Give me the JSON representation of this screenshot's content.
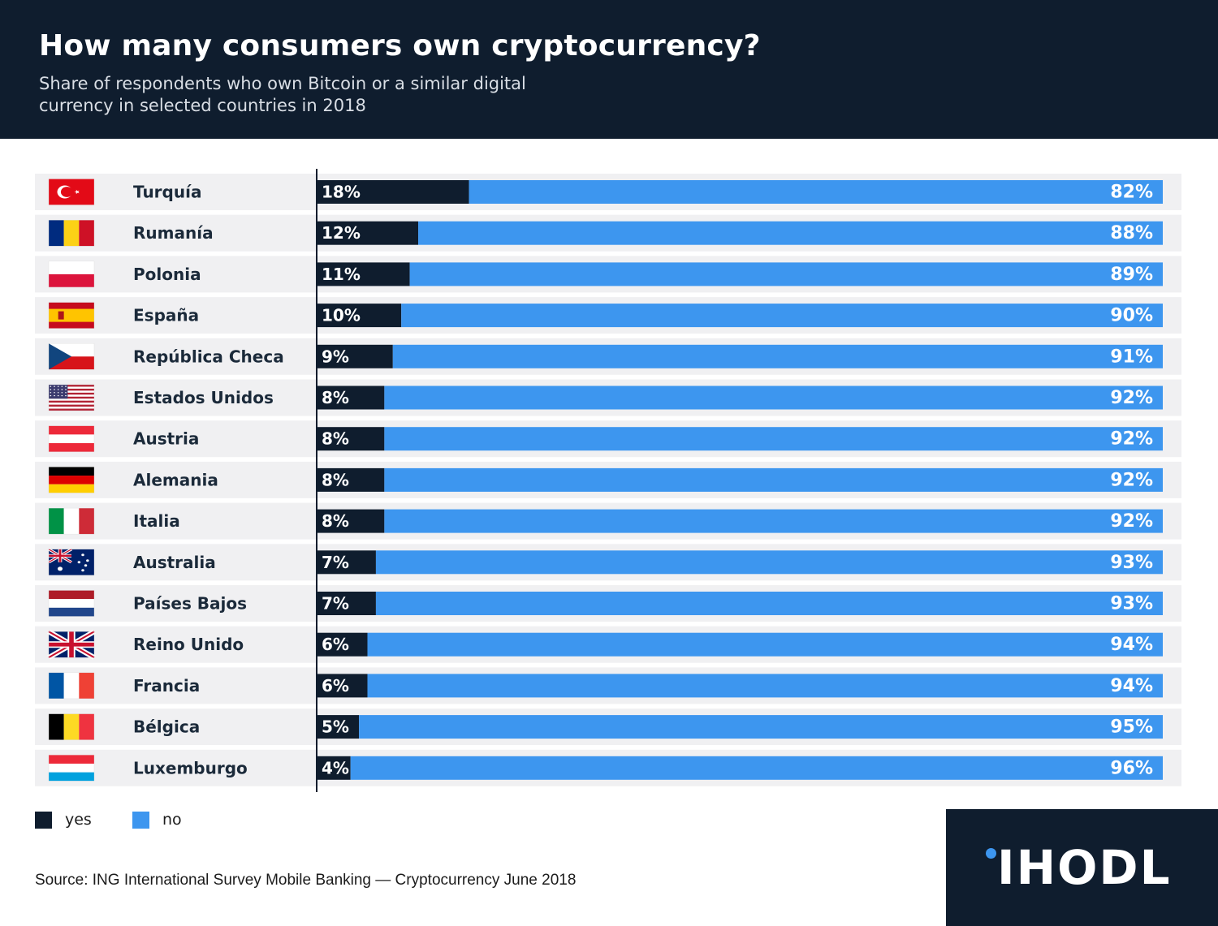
{
  "header": {
    "title": "How many consumers own cryptocurrency?",
    "subtitle": "Share of respondents who own Bitcoin or a similar digital currency in selected countries in 2018"
  },
  "legend": {
    "yes_label": "yes",
    "no_label": "no"
  },
  "source": "Source: ING International Survey Mobile Banking — Cryptocurrency June 2018",
  "brand": {
    "name": "IHODL"
  },
  "colors": {
    "header_bg": "#0f1d2e",
    "yes": "#0f1d2e",
    "no": "#3d96ef",
    "row_bg": "#f0f0f2",
    "brand_dot": "#3d96ef"
  },
  "chart_data": {
    "type": "bar",
    "orientation": "horizontal",
    "stacked": true,
    "value_unit": "%",
    "xlim": [
      0,
      100
    ],
    "categories": [
      "Turquía",
      "Rumanía",
      "Polonia",
      "España",
      "República Checa",
      "Estados Unidos",
      "Austria",
      "Alemania",
      "Italia",
      "Australia",
      "Países Bajos",
      "Reino Unido",
      "Francia",
      "Bélgica",
      "Luxemburgo"
    ],
    "flags": [
      "turkey-flag-icon",
      "romania-flag-icon",
      "poland-flag-icon",
      "spain-flag-icon",
      "czech-flag-icon",
      "usa-flag-icon",
      "austria-flag-icon",
      "germany-flag-icon",
      "italy-flag-icon",
      "australia-flag-icon",
      "netherlands-flag-icon",
      "uk-flag-icon",
      "france-flag-icon",
      "belgium-flag-icon",
      "luxembourg-flag-icon"
    ],
    "series": [
      {
        "name": "yes",
        "values": [
          18,
          12,
          11,
          10,
          9,
          8,
          8,
          8,
          8,
          7,
          7,
          6,
          6,
          5,
          4
        ]
      },
      {
        "name": "no",
        "values": [
          82,
          88,
          89,
          90,
          91,
          92,
          92,
          92,
          92,
          93,
          93,
          94,
          94,
          95,
          96
        ]
      }
    ],
    "legend_position": "bottom-left",
    "grid": false
  }
}
